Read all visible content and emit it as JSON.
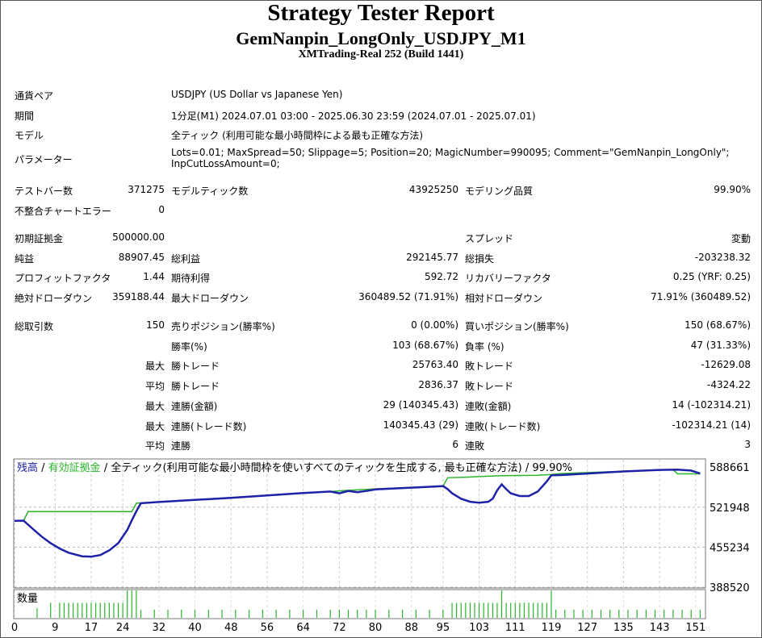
{
  "header": {
    "title": "Strategy Tester Report",
    "ea_name": "GemNanpin_LongOnly_USDJPY_M1",
    "server": "XMTrading-Real 252 (Build 1441)"
  },
  "info": {
    "symbol_label": "通貨ペア",
    "symbol_value": "USDJPY (US Dollar vs Japanese Yen)",
    "period_label": "期間",
    "period_value": "1分足(M1) 2024.07.01 03:00 - 2025.06.30 23:59 (2024.07.01 - 2025.07.01)",
    "model_label": "モデル",
    "model_value": "全ティック (利用可能な最小時間枠による最も正確な方法)",
    "params_label": "パラメーター",
    "params_line1": "Lots=0.01; MaxSpread=50; Slippage=5; Position=20; MagicNumber=990095; Comment=\"GemNanpin_LongOnly\";",
    "params_line2": "InpCutLossAmount=0;"
  },
  "stats": {
    "bars_label": "テストバー数",
    "bars_value": "371275",
    "ticks_label": "モデルティック数",
    "ticks_value": "43925250",
    "quality_label": "モデリング品質",
    "quality_value": "99.90%",
    "mismatch_label": "不整合チャートエラー",
    "mismatch_value": "0",
    "deposit_label": "初期証拠金",
    "deposit_value": "500000.00",
    "spread_label": "スプレッド",
    "spread_value": "変動",
    "netprofit_label": "純益",
    "netprofit_value": "88907.45",
    "grossprofit_label": "総利益",
    "grossprofit_value": "292145.77",
    "grossloss_label": "総損失",
    "grossloss_value": "-203238.32",
    "pf_label": "プロフィットファクタ",
    "pf_value": "1.44",
    "expected_label": "期待利得",
    "expected_value": "592.72",
    "recovery_label": "リカバリーファクタ",
    "recovery_value": "0.25 (YRF: 0.25)",
    "absdd_label": "絶対ドローダウン",
    "absdd_value": "359188.44",
    "maxdd_label": "最大ドローダウン",
    "maxdd_value": "360489.52 (71.91%)",
    "reldd_label": "相対ドローダウン",
    "reldd_value": "71.91% (360489.52)",
    "trades_label": "総取引数",
    "trades_value": "150",
    "short_label": "売りポジション(勝率%)",
    "short_value": "0 (0.00%)",
    "long_label": "買いポジション(勝率%)",
    "long_value": "150 (68.67%)",
    "winrate_label": "勝率(%)",
    "winrate_value": "103 (68.67%)",
    "lossrate_label": "負率 (%)",
    "lossrate_value": "47 (31.33%)",
    "max_label": "最大",
    "avg_label": "平均",
    "maxwin_label": "勝トレード",
    "maxwin_value": "25763.40",
    "maxloss_label": "敗トレード",
    "maxloss_value": "-12629.08",
    "avgwin_label": "勝トレード",
    "avgwin_value": "2836.37",
    "avgloss_label": "敗トレード",
    "avgloss_value": "-4324.22",
    "consecwin_amt_label": "連勝(金額)",
    "consecwin_amt_value": "29 (140345.43)",
    "consecloss_amt_label": "連敗(金額)",
    "consecloss_amt_value": "14 (-102314.21)",
    "consecwin_cnt_label": "連勝(トレード数)",
    "consecwin_cnt_value": "140345.43 (29)",
    "consecloss_cnt_label": "連敗(トレード数)",
    "consecloss_cnt_value": "-102314.21 (14)",
    "avgconsecwin_label": "連勝",
    "avgconsecwin_value": "6",
    "avgconsecloss_label": "連敗",
    "avgconsecloss_value": "3"
  },
  "chart_data": {
    "type": "line",
    "legend_balance": "残高",
    "legend_sep": " / ",
    "legend_equity": "有効証拠金",
    "legend_rest": " / 全ティック(利用可能な最小時間枠を使いすべてのティックを生成する, 最も正確な方法) / 99.90%",
    "volume_label": "数量",
    "yticks": [
      "588661",
      "521948",
      "455234",
      "388520"
    ],
    "ylim": [
      388520,
      601000
    ],
    "xticks": [
      "0",
      "9",
      "17",
      "24",
      "32",
      "40",
      "48",
      "56",
      "64",
      "72",
      "80",
      "88",
      "95",
      "103",
      "111",
      "119",
      "127",
      "135",
      "143",
      "151"
    ],
    "xlim": [
      0,
      153
    ],
    "colors": {
      "balance": "#1e22a8",
      "equity": "#2bb52b",
      "volume": "#2bb52b"
    },
    "balance_x": [
      0,
      2,
      4,
      6,
      8,
      10,
      12,
      15,
      17,
      19,
      21,
      23,
      25,
      26,
      27,
      28,
      32,
      40,
      48,
      56,
      64,
      70,
      72,
      74,
      76,
      78,
      80,
      88,
      92,
      95,
      96,
      97,
      99,
      101,
      103,
      105,
      106,
      107,
      108,
      109,
      110,
      112,
      114,
      116,
      118,
      119,
      121,
      127,
      135,
      143,
      147,
      150,
      152
    ],
    "balance_y": [
      499000,
      499500,
      486000,
      473000,
      462000,
      453000,
      446000,
      440000,
      439500,
      442000,
      450000,
      462000,
      484000,
      500000,
      515000,
      528500,
      530500,
      534000,
      537500,
      541500,
      545500,
      548000,
      545000,
      549000,
      547000,
      549000,
      551500,
      554500,
      556000,
      557000,
      552000,
      545000,
      536000,
      531000,
      529500,
      531000,
      536000,
      550000,
      560000,
      552000,
      545000,
      540500,
      540500,
      548000,
      565000,
      575000,
      575500,
      578000,
      581500,
      584000,
      584500,
      583000,
      578000
    ],
    "equity_x": [
      0,
      2,
      3,
      26,
      27,
      70,
      73,
      80,
      95,
      96,
      100,
      105,
      108,
      116,
      119,
      121,
      130,
      143,
      146,
      147,
      152
    ],
    "equity_y": [
      499000,
      499500,
      514500,
      514500,
      528500,
      548000,
      549500,
      552500,
      557000,
      571000,
      572000,
      573500,
      574500,
      575000,
      576500,
      578000,
      580500,
      583500,
      584500,
      577500,
      577500
    ],
    "volume_bars": [
      [
        5,
        0.35
      ],
      [
        8,
        0.55
      ],
      [
        10,
        0.55
      ],
      [
        11,
        0.55
      ],
      [
        12,
        0.55
      ],
      [
        13,
        0.55
      ],
      [
        14,
        0.55
      ],
      [
        15,
        0.55
      ],
      [
        16,
        0.55
      ],
      [
        17,
        0.55
      ],
      [
        18,
        0.55
      ],
      [
        19,
        0.55
      ],
      [
        20,
        0.55
      ],
      [
        21,
        0.55
      ],
      [
        22,
        0.55
      ],
      [
        23,
        0.55
      ],
      [
        24,
        0.55
      ],
      [
        25,
        1.0
      ],
      [
        26,
        1.0
      ],
      [
        27,
        1.0
      ],
      [
        28,
        0.3
      ],
      [
        31,
        0.3
      ],
      [
        34,
        0.3
      ],
      [
        37,
        0.3
      ],
      [
        40,
        0.3
      ],
      [
        43,
        0.3
      ],
      [
        46,
        0.3
      ],
      [
        49,
        0.3
      ],
      [
        52,
        0.3
      ],
      [
        55,
        0.3
      ],
      [
        58,
        0.3
      ],
      [
        61,
        0.3
      ],
      [
        64,
        0.3
      ],
      [
        67,
        0.3
      ],
      [
        70,
        0.3
      ],
      [
        72,
        0.3
      ],
      [
        74,
        0.3
      ],
      [
        76,
        0.3
      ],
      [
        78,
        0.3
      ],
      [
        80,
        0.3
      ],
      [
        83,
        0.3
      ],
      [
        86,
        0.3
      ],
      [
        89,
        0.3
      ],
      [
        92,
        0.3
      ],
      [
        95,
        0.3
      ],
      [
        97,
        0.55
      ],
      [
        98,
        0.55
      ],
      [
        99,
        0.55
      ],
      [
        100,
        0.55
      ],
      [
        101,
        0.55
      ],
      [
        102,
        0.55
      ],
      [
        103,
        0.55
      ],
      [
        104,
        0.55
      ],
      [
        105,
        0.55
      ],
      [
        106,
        0.55
      ],
      [
        107,
        0.55
      ],
      [
        108,
        1.0
      ],
      [
        109,
        0.55
      ],
      [
        110,
        0.55
      ],
      [
        111,
        0.55
      ],
      [
        112,
        0.55
      ],
      [
        113,
        0.55
      ],
      [
        114,
        0.55
      ],
      [
        115,
        0.55
      ],
      [
        116,
        0.55
      ],
      [
        117,
        0.55
      ],
      [
        118,
        0.55
      ],
      [
        119,
        1.0
      ],
      [
        120,
        0.3
      ],
      [
        122,
        0.3
      ],
      [
        124,
        0.3
      ],
      [
        126,
        0.3
      ],
      [
        128,
        0.3
      ],
      [
        130,
        0.3
      ],
      [
        132,
        0.3
      ],
      [
        134,
        0.3
      ],
      [
        136,
        0.3
      ],
      [
        138,
        0.3
      ],
      [
        140,
        0.3
      ],
      [
        142,
        0.3
      ],
      [
        144,
        0.3
      ],
      [
        146,
        0.3
      ],
      [
        148,
        0.3
      ],
      [
        150,
        0.3
      ],
      [
        152,
        0.3
      ]
    ]
  }
}
